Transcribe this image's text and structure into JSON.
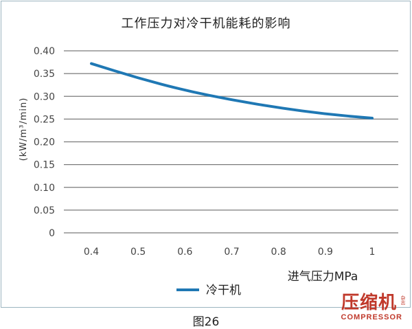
{
  "chart_data": {
    "type": "line",
    "title": "工作压力对冷干机能耗的影响",
    "xlabel": "进气压力MPa",
    "ylabel": "(kW/m³/min)",
    "x_ticks": [
      "0.4",
      "0.5",
      "0.6",
      "0.7",
      "0.8",
      "0.9",
      "1"
    ],
    "y_ticks": [
      "0",
      "0.05",
      "0.10",
      "0.15",
      "0.20",
      "0.25",
      "0.30",
      "0.35",
      "0.40"
    ],
    "xlim": [
      0.4,
      1.0
    ],
    "ylim": [
      0,
      0.4
    ],
    "grid": true,
    "legend_position": "bottom",
    "series": [
      {
        "name": "冷干机",
        "color": "#1f78b4",
        "x": [
          0.4,
          0.5,
          0.6,
          0.7,
          0.8,
          0.9,
          1.0
        ],
        "y": [
          0.372,
          0.34,
          0.313,
          0.292,
          0.275,
          0.261,
          0.252
        ]
      }
    ]
  },
  "logo": {
    "cn": "压缩机",
    "en": "COMPRESSOR",
    "small": "杂志"
  },
  "caption": "图26"
}
